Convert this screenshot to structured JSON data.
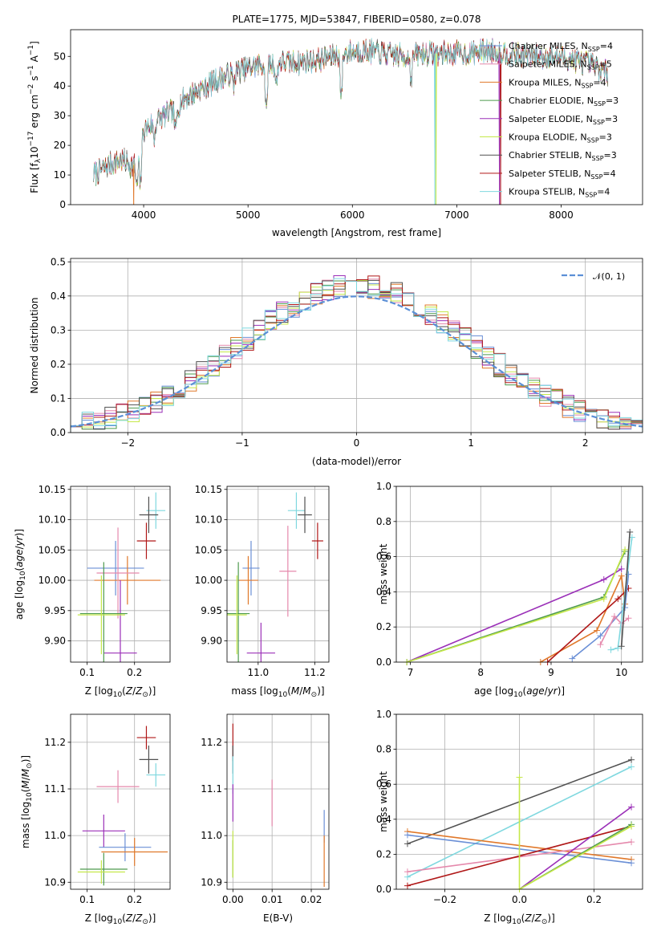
{
  "colors": {
    "Chabrier MILES": "#6a8fd6",
    "Salpeter MILES": "#e589ac",
    "Kroupa MILES": "#e0782a",
    "Chabrier ELODIE": "#4e9a4e",
    "Salpeter ELODIE": "#9b30b8",
    "Kroupa ELODIE": "#c5e84a",
    "Chabrier STELIB": "#505050",
    "Salpeter STELIB": "#b01818",
    "Kroupa STELIB": "#7fd8df",
    "gaussian": "#5b8fd6"
  },
  "chart_data": [
    {
      "id": "spectrum",
      "type": "line",
      "title": "PLATE=1775, MJD=53847, FIBERID=0580, z=0.078",
      "xlabel": "wavelength [Angstrom, rest frame]",
      "ylabel": "Flux [f_λ 10^-17 erg cm^-2 s^-1 A^-1]",
      "xlim": [
        3300,
        8780
      ],
      "ylim": [
        0,
        59
      ],
      "xticks": [
        4000,
        5000,
        6000,
        7000,
        8000
      ],
      "yticks": [
        0,
        10,
        20,
        30,
        40,
        50
      ],
      "grid": false,
      "legend_position": "right",
      "legend": [
        {
          "model": "Chabrier MILES",
          "nssp": "4"
        },
        {
          "model": "Salpeter MILES",
          "nssp": "5"
        },
        {
          "model": "Kroupa MILES",
          "nssp": "4"
        },
        {
          "model": "Chabrier ELODIE",
          "nssp": "3"
        },
        {
          "model": "Salpeter ELODIE",
          "nssp": "3"
        },
        {
          "model": "Kroupa ELODIE",
          "nssp": "3"
        },
        {
          "model": "Chabrier STELIB",
          "nssp": "3"
        },
        {
          "model": "Salpeter STELIB",
          "nssp": "4"
        },
        {
          "model": "Kroupa STELIB",
          "nssp": "4"
        }
      ],
      "continuum": {
        "x": [
          3520,
          3600,
          3700,
          3800,
          3900,
          3950,
          4000,
          4100,
          4200,
          4300,
          4400,
          4500,
          4700,
          4900,
          5100,
          5300,
          5500,
          5700,
          5900,
          6100,
          6300,
          6500,
          6700,
          6900,
          7100,
          7300,
          7500,
          7700,
          7900,
          8100,
          8300,
          8450
        ],
        "y": [
          10,
          12,
          14,
          15,
          13,
          17,
          25,
          28,
          30,
          32,
          36,
          38,
          42,
          45,
          47,
          48,
          48,
          49,
          51,
          52,
          51,
          50,
          51,
          51,
          51,
          52,
          51,
          50,
          50,
          49,
          47,
          44
        ]
      },
      "absorption_features": [
        {
          "x": 3934,
          "y": 5
        },
        {
          "x": 3969,
          "y": 6
        },
        {
          "x": 4101,
          "y": 22
        },
        {
          "x": 4305,
          "y": 24
        },
        {
          "x": 4862,
          "y": 40
        },
        {
          "x": 5175,
          "y": 30
        },
        {
          "x": 5270,
          "y": 40
        },
        {
          "x": 5893,
          "y": 35
        },
        {
          "x": 6563,
          "y": 42
        }
      ],
      "dropouts": [
        {
          "series": "Kroupa MILES",
          "x": 3905
        },
        {
          "series": "Kroupa ELODIE",
          "x": 6800
        },
        {
          "series": "Salpeter ELODIE",
          "x": 7410
        },
        {
          "series": "Kroupa STELIB",
          "x": 6790
        },
        {
          "series": "Salpeter STELIB",
          "x": 7420
        }
      ]
    },
    {
      "id": "residuals",
      "type": "step",
      "xlabel": "(data-model)/error",
      "ylabel": "Normed distribution",
      "xlim": [
        -2.5,
        2.5
      ],
      "ylim": [
        0,
        0.51
      ],
      "xticks": [
        -2,
        -1,
        0,
        1,
        2
      ],
      "yticks": [
        0.0,
        0.1,
        0.2,
        0.3,
        0.4,
        0.5
      ],
      "grid": true,
      "legend_position": "upper right",
      "legend": [
        {
          "label": "𝒩(0, 1)",
          "style": "dashed"
        }
      ],
      "bin_width": 0.1,
      "x_min": -2.5,
      "note": "values shown by step-histogram per model series, density approx normal",
      "reference_curve": "standard normal density"
    },
    {
      "id": "age_vs_Z",
      "type": "errorbar",
      "xlabel": "Z [log10(Z/Z⊙)]",
      "ylabel": "age  [log10(age/yr)]",
      "xlim": [
        0.065,
        0.275
      ],
      "ylim": [
        9.865,
        10.155
      ],
      "xticks": [
        0.1,
        0.2
      ],
      "yticks": [
        9.9,
        9.95,
        10.0,
        10.05,
        10.1,
        10.15
      ],
      "grid": true,
      "points": [
        {
          "series": "Kroupa STELIB",
          "x": 0.245,
          "xerr": 0.02,
          "y": 10.115,
          "yerr": 0.03
        },
        {
          "series": "Chabrier STELIB",
          "x": 0.23,
          "xerr": 0.02,
          "y": 10.108,
          "yerr": 0.03
        },
        {
          "series": "Salpeter STELIB",
          "x": 0.225,
          "xerr": 0.02,
          "y": 10.065,
          "yerr": 0.03
        },
        {
          "series": "Chabrier MILES",
          "x": 0.16,
          "xerr": 0.06,
          "y": 10.02,
          "yerr": 0.045
        },
        {
          "series": "Kroupa MILES",
          "x": 0.185,
          "xerr": 0.07,
          "y": 10.0,
          "yerr": 0.04
        },
        {
          "series": "Salpeter MILES",
          "x": 0.165,
          "xerr": 0.045,
          "y": 10.012,
          "yerr": 0.075
        },
        {
          "series": "Salpeter ELODIE",
          "x": 0.17,
          "xerr": 0.035,
          "y": 9.88,
          "yerr": 0.12
        },
        {
          "series": "Chabrier ELODIE",
          "x": 0.135,
          "xerr": 0.05,
          "y": 9.945,
          "yerr": 0.085
        },
        {
          "series": "Kroupa ELODIE",
          "x": 0.13,
          "xerr": 0.05,
          "y": 9.943,
          "yerr": 0.065
        }
      ]
    },
    {
      "id": "age_vs_mass",
      "type": "errorbar",
      "xlabel": "mass [log10(M/M⊙)]",
      "ylabel": "",
      "xlim": [
        10.89,
        11.25
      ],
      "ylim": [
        9.865,
        10.155
      ],
      "xticks": [
        11.0,
        11.2
      ],
      "yticks": [
        9.9,
        9.95,
        10.0,
        10.05,
        10.1,
        10.15
      ],
      "grid": true,
      "points": [
        {
          "series": "Kroupa STELIB",
          "x": 11.135,
          "xerr": 0.03,
          "y": 10.115,
          "yerr": 0.03
        },
        {
          "series": "Chabrier STELIB",
          "x": 11.165,
          "xerr": 0.025,
          "y": 10.108,
          "yerr": 0.03
        },
        {
          "series": "Salpeter STELIB",
          "x": 11.21,
          "xerr": 0.02,
          "y": 10.065,
          "yerr": 0.03
        },
        {
          "series": "Chabrier MILES",
          "x": 10.975,
          "xerr": 0.03,
          "y": 10.02,
          "yerr": 0.045
        },
        {
          "series": "Kroupa MILES",
          "x": 10.965,
          "xerr": 0.035,
          "y": 10.0,
          "yerr": 0.04
        },
        {
          "series": "Salpeter MILES",
          "x": 11.105,
          "xerr": 0.03,
          "y": 10.015,
          "yerr": 0.075
        },
        {
          "series": "Salpeter ELODIE",
          "x": 11.01,
          "xerr": 0.05,
          "y": 9.88,
          "yerr": 0.05
        },
        {
          "series": "Chabrier ELODIE",
          "x": 10.93,
          "xerr": 0.04,
          "y": 9.945,
          "yerr": 0.085
        },
        {
          "series": "Kroupa ELODIE",
          "x": 10.925,
          "xerr": 0.035,
          "y": 9.943,
          "yerr": 0.065
        }
      ]
    },
    {
      "id": "weight_vs_age",
      "type": "line",
      "xlabel": "age  [log10(age/yr)]",
      "ylabel": "mass weight",
      "xlim": [
        6.8,
        10.3
      ],
      "ylim": [
        0,
        1
      ],
      "xticks": [
        7,
        8,
        9,
        10
      ],
      "yticks": [
        0.0,
        0.2,
        0.4,
        0.6,
        0.8,
        1.0
      ],
      "grid": true,
      "series": [
        {
          "name": "Salpeter ELODIE",
          "x": [
            6.95,
            9.75,
            10.0
          ],
          "y": [
            0.0,
            0.47,
            0.53
          ]
        },
        {
          "name": "Chabrier ELODIE",
          "x": [
            6.95,
            9.75,
            10.05
          ],
          "y": [
            0.0,
            0.37,
            0.63
          ]
        },
        {
          "name": "Kroupa ELODIE",
          "x": [
            6.95,
            9.75,
            10.05
          ],
          "y": [
            0.0,
            0.36,
            0.64
          ]
        },
        {
          "name": "Kroupa MILES",
          "x": [
            8.85,
            9.65,
            10.0,
            10.05
          ],
          "y": [
            0.0,
            0.18,
            0.49,
            0.33
          ]
        },
        {
          "name": "Salpeter STELIB",
          "x": [
            8.95,
            9.95,
            10.1
          ],
          "y": [
            0.0,
            0.36,
            0.42
          ]
        },
        {
          "name": "Chabrier MILES",
          "x": [
            9.3,
            9.7,
            10.05,
            10.1
          ],
          "y": [
            0.02,
            0.15,
            0.31,
            0.5
          ]
        },
        {
          "name": "Salpeter MILES",
          "x": [
            9.7,
            9.9,
            10.0,
            10.1
          ],
          "y": [
            0.1,
            0.26,
            0.22,
            0.25
          ]
        },
        {
          "name": "Kroupa STELIB",
          "x": [
            9.85,
            9.95,
            10.15
          ],
          "y": [
            0.07,
            0.08,
            0.71
          ]
        },
        {
          "name": "Chabrier STELIB",
          "x": [
            10.0,
            10.12
          ],
          "y": [
            0.09,
            0.74
          ]
        }
      ]
    },
    {
      "id": "mass_vs_Z",
      "type": "errorbar",
      "xlabel": "Z [log10(Z/Z⊙)]",
      "ylabel": "mass [log10(M/M⊙)]",
      "xlim": [
        0.065,
        0.275
      ],
      "ylim": [
        10.885,
        11.26
      ],
      "xticks": [
        0.1,
        0.2
      ],
      "yticks": [
        10.9,
        11.0,
        11.1,
        11.2
      ],
      "grid": true,
      "points": [
        {
          "series": "Salpeter STELIB",
          "x": 0.225,
          "xerr": 0.02,
          "y": 11.21,
          "yerr": 0.025
        },
        {
          "series": "Chabrier STELIB",
          "x": 0.23,
          "xerr": 0.02,
          "y": 11.163,
          "yerr": 0.03
        },
        {
          "series": "Kroupa STELIB",
          "x": 0.245,
          "xerr": 0.02,
          "y": 11.13,
          "yerr": 0.025
        },
        {
          "series": "Salpeter MILES",
          "x": 0.165,
          "xerr": 0.045,
          "y": 11.105,
          "yerr": 0.035
        },
        {
          "series": "Salpeter ELODIE",
          "x": 0.135,
          "xerr": 0.045,
          "y": 11.01,
          "yerr": 0.035
        },
        {
          "series": "Chabrier MILES",
          "x": 0.18,
          "xerr": 0.055,
          "y": 10.975,
          "yerr": 0.03
        },
        {
          "series": "Kroupa MILES",
          "x": 0.2,
          "xerr": 0.07,
          "y": 10.965,
          "yerr": 0.03
        },
        {
          "series": "Chabrier ELODIE",
          "x": 0.135,
          "xerr": 0.05,
          "y": 10.928,
          "yerr": 0.035
        },
        {
          "series": "Kroupa ELODIE",
          "x": 0.13,
          "xerr": 0.05,
          "y": 10.922,
          "yerr": 0.025
        }
      ]
    },
    {
      "id": "mass_vs_ebv",
      "type": "errorbar",
      "xlabel": "E(B-V)",
      "ylabel": "",
      "xlim": [
        -0.0015,
        0.0245
      ],
      "ylim": [
        10.885,
        11.26
      ],
      "xticks": [
        0.0,
        0.01,
        0.02
      ],
      "yticks": [
        10.9,
        11.0,
        11.1,
        11.2
      ],
      "grid": true,
      "points": [
        {
          "series": "Salpeter STELIB",
          "x": 0.0,
          "y": 11.2,
          "yerr": 0.04
        },
        {
          "series": "Chabrier STELIB",
          "x": 0.0,
          "y": 11.163,
          "yerr": 0.03
        },
        {
          "series": "Kroupa STELIB",
          "x": 0.0,
          "y": 11.13,
          "yerr": 0.04
        },
        {
          "series": "Salpeter ELODIE",
          "x": 0.0,
          "y": 11.07,
          "yerr": 0.04
        },
        {
          "series": "Salpeter MILES",
          "x": 0.01,
          "y": 11.07,
          "yerr": 0.05
        },
        {
          "series": "Chabrier ELODIE",
          "x": 0.0,
          "y": 10.95,
          "yerr": 0.04
        },
        {
          "series": "Kroupa ELODIE",
          "x": 0.0,
          "y": 10.96,
          "yerr": 0.05
        },
        {
          "series": "Chabrier MILES",
          "x": 0.0233,
          "y": 11.02,
          "yerr": 0.035
        },
        {
          "series": "Kroupa MILES",
          "x": 0.0233,
          "y": 10.945,
          "yerr": 0.055
        }
      ]
    },
    {
      "id": "weight_vs_Z",
      "type": "line",
      "xlabel": "Z [log10(Z/Z⊙)]",
      "ylabel": "mass weight",
      "xlim": [
        -0.33,
        0.33
      ],
      "ylim": [
        0,
        1
      ],
      "xticks": [
        -0.2,
        0.0,
        0.2
      ],
      "yticks": [
        0.0,
        0.2,
        0.4,
        0.6,
        0.8,
        1.0
      ],
      "grid": true,
      "series": [
        {
          "name": "Chabrier STELIB",
          "x": [
            -0.3,
            0.3
          ],
          "y": [
            0.26,
            0.74
          ]
        },
        {
          "name": "Kroupa STELIB",
          "x": [
            -0.3,
            0.3
          ],
          "y": [
            0.07,
            0.7
          ]
        },
        {
          "name": "Kroupa MILES",
          "x": [
            -0.3,
            0.3
          ],
          "y": [
            0.33,
            0.17
          ]
        },
        {
          "name": "Chabrier MILES",
          "x": [
            -0.3,
            0.3
          ],
          "y": [
            0.31,
            0.15
          ]
        },
        {
          "name": "Salpeter MILES",
          "x": [
            -0.3,
            0.3
          ],
          "y": [
            0.1,
            0.27
          ]
        },
        {
          "name": "Salpeter STELIB",
          "x": [
            -0.3,
            0.3
          ],
          "y": [
            0.02,
            0.36
          ]
        },
        {
          "name": "Salpeter ELODIE",
          "x": [
            0.0,
            0.3
          ],
          "y": [
            0.0,
            0.47
          ]
        },
        {
          "name": "Chabrier ELODIE",
          "x": [
            0.0,
            0.3
          ],
          "y": [
            0.0,
            0.37
          ]
        },
        {
          "name": "Kroupa ELODIE",
          "x": [
            0.0,
            0.0,
            0.3
          ],
          "y": [
            0.64,
            0.0,
            0.36
          ]
        }
      ]
    }
  ]
}
